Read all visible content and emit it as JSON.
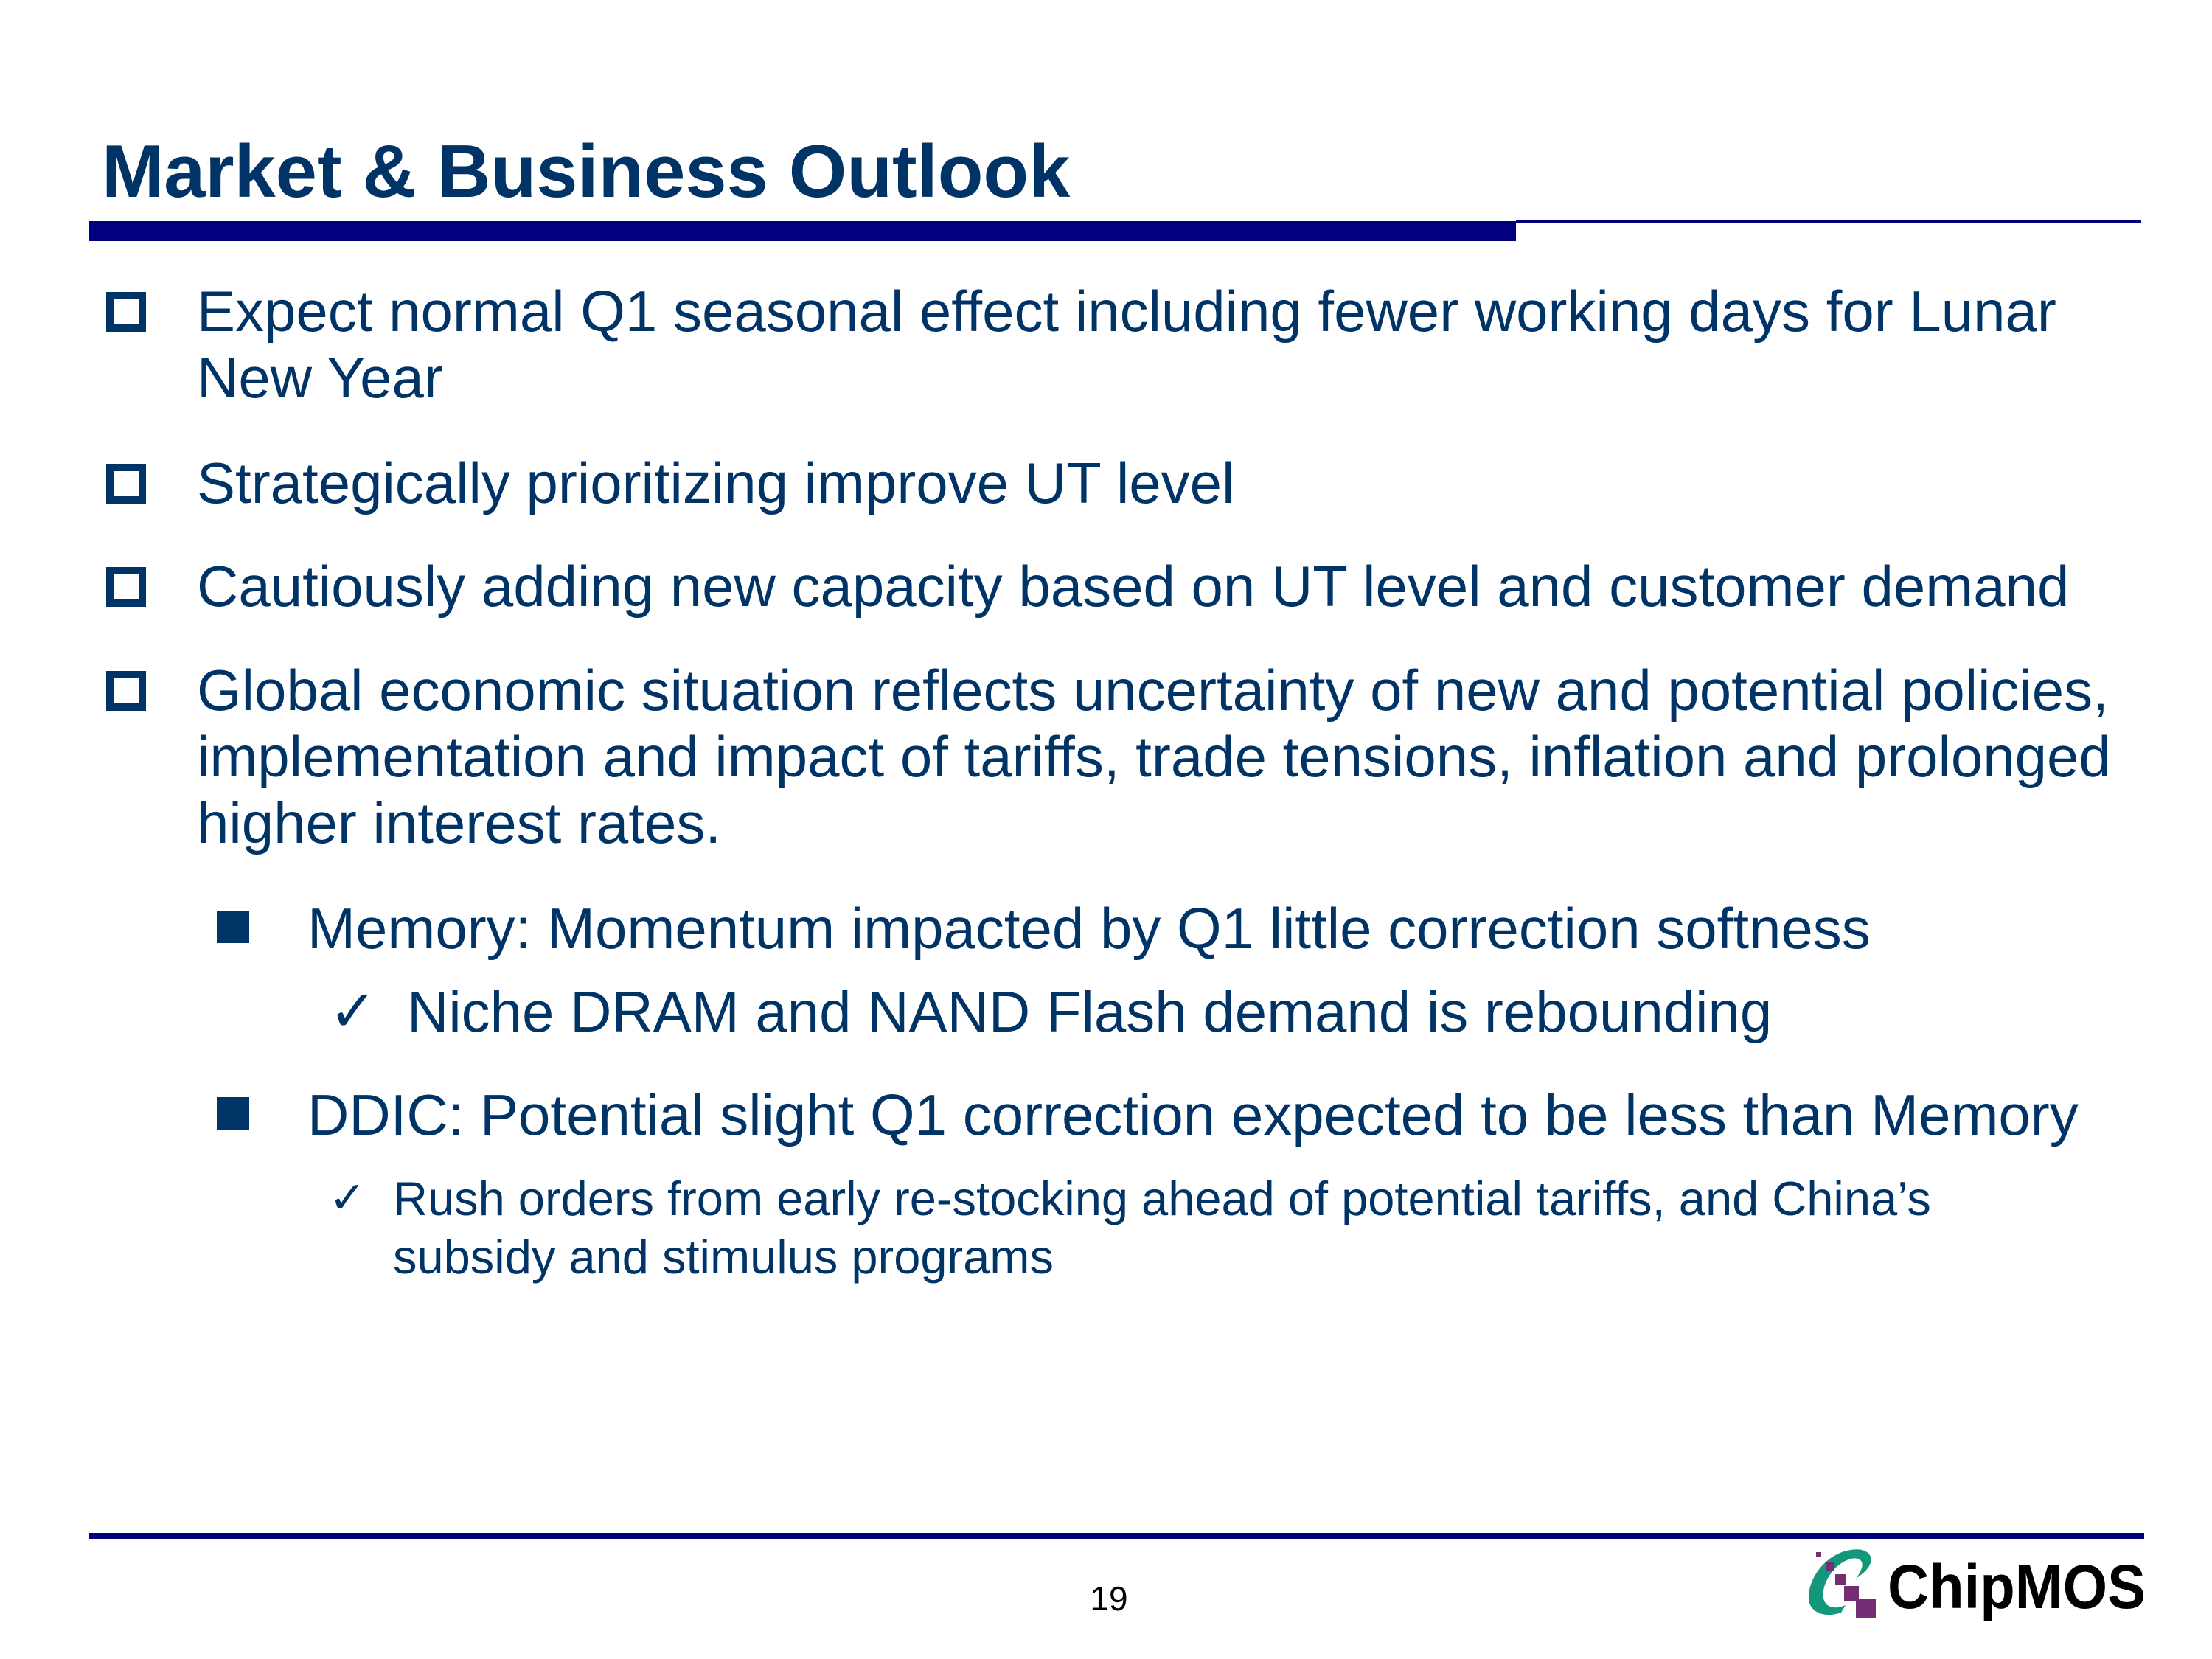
{
  "slide": {
    "title": "Market & Business Outlook",
    "bullets": [
      "Expect normal Q1 seasonal effect including fewer working days for Lunar New Year",
      "Strategically prioritizing improve UT level",
      "Cautiously adding new capacity based on UT level and customer demand",
      "Global economic situation reflects uncertainty of new and potential policies, implementation and impact of tariffs, trade tensions, inflation and prolonged higher interest rates."
    ],
    "sub_bullets": [
      {
        "text": "Memory: Momentum impacted by Q1 little correction softness",
        "check": "Niche DRAM and NAND Flash demand is rebounding"
      },
      {
        "text": "DDIC: Potential slight Q1 correction expected to be less than Memory",
        "check": "Rush orders from early re-stocking ahead of potential tariffs, and China’s subsidy and stimulus programs"
      }
    ],
    "check_glyph": "✓",
    "page_number": "19"
  },
  "logo": {
    "text": "ChipMOS",
    "colors": {
      "swoosh": "#12977A",
      "squares": "#742F74",
      "text": "#000000"
    }
  },
  "colors": {
    "text": "#003366",
    "rule": "#000080"
  }
}
